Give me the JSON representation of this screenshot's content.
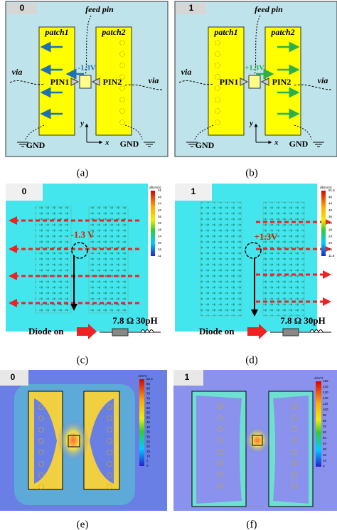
{
  "panels": [
    {
      "tag": "0",
      "caption": "(a)",
      "feed_pin": "feed pin",
      "patch1": "patch1",
      "patch2": "patch2",
      "via_left": "via",
      "via_right": "via",
      "pin1": "PIN1",
      "pin2": "PIN2",
      "voltage": "-1.3V",
      "gnd_left": "GND",
      "gnd_right": "GND",
      "axis_y": "y",
      "axis_x": "x"
    },
    {
      "tag": "1",
      "caption": "(b)",
      "feed_pin": "feed pin",
      "patch1": "patch1",
      "patch2": "patch2",
      "via_left": "via",
      "via_right": "via",
      "pin1": "PIN1",
      "pin2": "PIN2",
      "voltage": "+1.3V",
      "gnd_left": "GND",
      "gnd_right": "GND",
      "axis_y": "y",
      "axis_x": "x"
    },
    {
      "tag": "0",
      "caption": "(c)",
      "voltage": "-1.3 V",
      "diode": "Diode on",
      "load": "7.8 Ω 30pH",
      "colorbar": {
        "unit": "dB(A/m)",
        "ticks": [
          "51",
          "48",
          "44",
          "40",
          "36",
          "32",
          "28",
          "24",
          "20",
          "16",
          "11"
        ]
      }
    },
    {
      "tag": "1",
      "caption": "(d)",
      "voltage": "+1.3V",
      "diode": "Diode on",
      "load": "7.8 Ω 30pH",
      "colorbar": {
        "unit": "dB(A/m)",
        "ticks": [
          "51.6",
          "48",
          "44",
          "40",
          "36",
          "32",
          "28",
          "24",
          "20",
          "16",
          "11.6"
        ]
      }
    },
    {
      "tag": "0",
      "caption": "(e)",
      "colorbar": {
        "unit": "A/m^2",
        "ticks": [
          "92.4",
          "85",
          "80",
          "75",
          "70",
          "65",
          "60",
          "55",
          "50",
          "45",
          "40",
          "35",
          "30",
          "25",
          "20",
          "15",
          "10",
          "5",
          "0"
        ]
      }
    },
    {
      "tag": "1",
      "caption": "(f)",
      "colorbar": {
        "unit": "A/m^2",
        "ticks": [
          "150",
          "140",
          "130",
          "120",
          "110",
          "100",
          "90",
          "80",
          "70",
          "60",
          "50",
          "40",
          "30",
          "20",
          "10",
          "0"
        ]
      }
    }
  ]
}
